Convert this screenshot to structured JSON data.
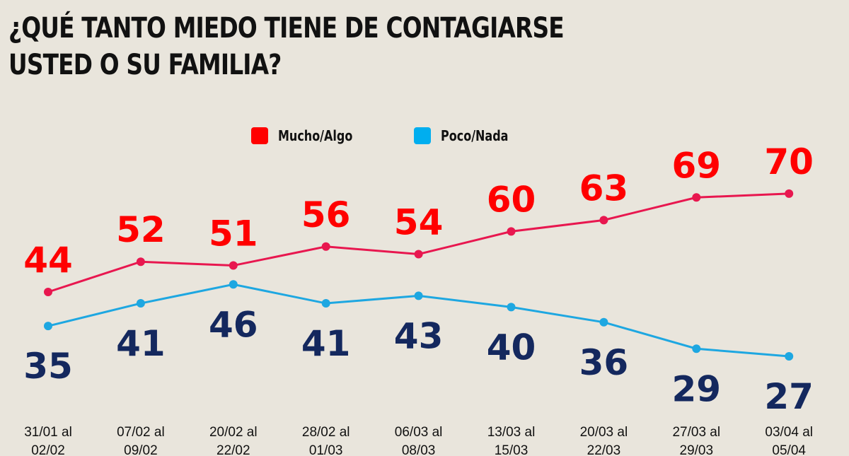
{
  "chart_data": {
    "type": "line",
    "title": "¿QUÉ TANTO MIEDO TIENE DE CONTAGIARSE USTED O SU FAMILIA?",
    "title_lines": [
      "¿QUÉ TANTO MIEDO TIENE DE CONTAGIARSE",
      "USTED O SU FAMILIA?"
    ],
    "categories": [
      [
        "31/01 al",
        "02/02"
      ],
      [
        "07/02 al",
        "09/02"
      ],
      [
        "20/02 al",
        "22/02"
      ],
      [
        "28/02 al",
        "01/03"
      ],
      [
        "06/03 al",
        "08/03"
      ],
      [
        "13/03 al",
        "15/03"
      ],
      [
        "20/03 al",
        "22/03"
      ],
      [
        "27/03 al",
        "29/03"
      ],
      [
        "03/04 al",
        "05/04"
      ]
    ],
    "series": [
      {
        "name": "Mucho/Algo",
        "values": [
          44,
          52,
          51,
          56,
          54,
          60,
          63,
          69,
          70
        ],
        "line_color": "#e8174f",
        "label_color": "#ff0000",
        "legend_color": "#ff0000"
      },
      {
        "name": "Poco/Nada",
        "values": [
          35,
          41,
          46,
          41,
          43,
          40,
          36,
          29,
          27
        ],
        "line_color": "#1ea7e1",
        "label_color": "#14285e",
        "legend_color": "#00aeef"
      }
    ],
    "legend_position": "top-center",
    "grid": false,
    "data_labels": true
  }
}
